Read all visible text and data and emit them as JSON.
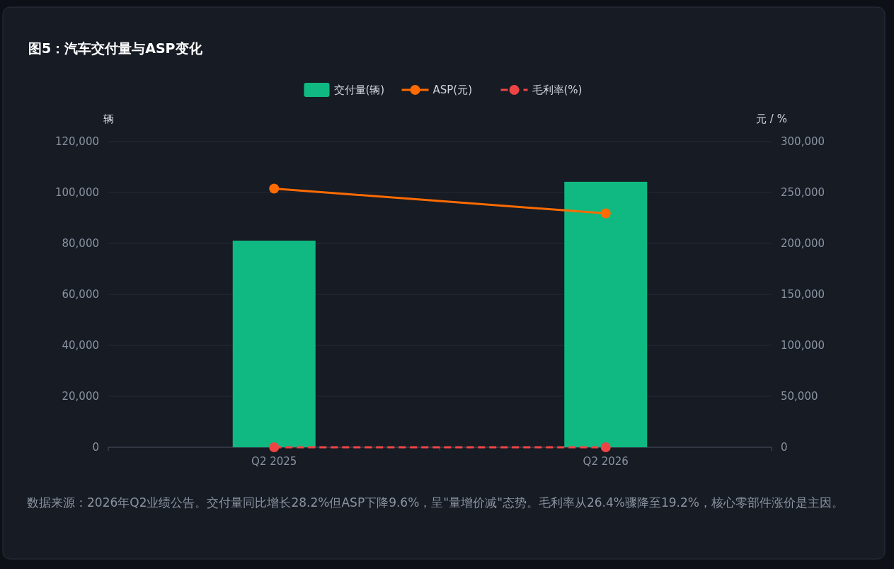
{
  "chart_data": {
    "type": "bar",
    "title": "图5：汽车交付量与ASP变化",
    "ylabel": "辆",
    "y2label": "元 / %",
    "categories": [
      "Q2 2025",
      "Q2 2026"
    ],
    "series": [
      {
        "name": "交付量(辆)",
        "color": "#10b981",
        "values": [
          81100,
          104200
        ]
      },
      {
        "name": "ASP(元)",
        "type": "line",
        "axis": "y2",
        "color": "#ff6b00",
        "values": [
          253800,
          229500
        ],
        "marker": "circle",
        "line_style": "solid"
      },
      {
        "name": "毛利率(%)",
        "type": "line",
        "axis": "y2",
        "color": "#ef4444",
        "values": [
          26.4,
          19.2
        ],
        "marker": "circle",
        "line_style": "dashed"
      }
    ],
    "ylim": [
      0,
      120000
    ],
    "yticks": [
      {
        "value": 0,
        "label": "0"
      },
      {
        "value": 20000,
        "label": "20,000"
      },
      {
        "value": 40000,
        "label": "40,000"
      },
      {
        "value": 60000,
        "label": "60,000"
      },
      {
        "value": 80000,
        "label": "80,000"
      },
      {
        "value": 100000,
        "label": "100,000"
      },
      {
        "value": 120000,
        "label": "120,000"
      }
    ],
    "y2lim": [
      0,
      300000
    ],
    "y2ticks": [
      {
        "value": 0,
        "label": "0"
      },
      {
        "value": 50000,
        "label": "50,000"
      },
      {
        "value": 100000,
        "label": "100,000"
      },
      {
        "value": 150000,
        "label": "150,000"
      },
      {
        "value": 200000,
        "label": "200,000"
      },
      {
        "value": 250000,
        "label": "250,000"
      },
      {
        "value": 300000,
        "label": "300,000"
      }
    ],
    "grid": "y",
    "legend": "top",
    "annotations": [
      "数据来源：2026年Q2业绩公告。交付量同比增长28.2%但ASP下降9.6%，呈\"量增价减\"态势。毛利率从26.4%骤降至19.2%，核心零部件涨价是主因。"
    ]
  }
}
